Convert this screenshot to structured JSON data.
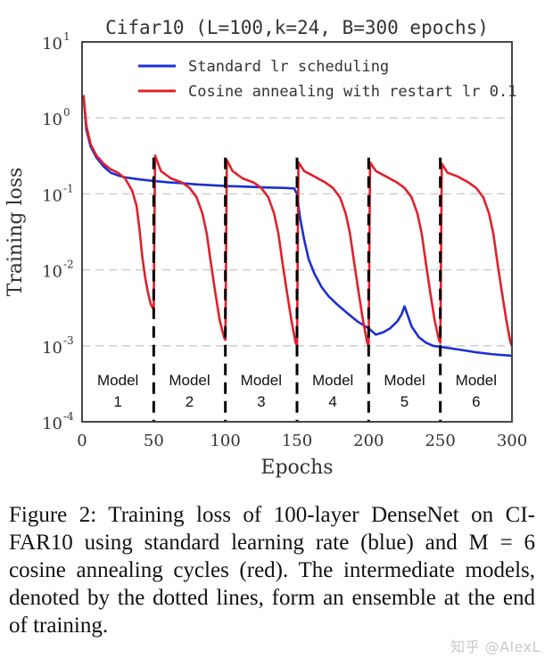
{
  "chart_data": {
    "type": "line",
    "title": "Cifar10 (L=100,k=24, B=300 epochs)",
    "xlabel": "Epochs",
    "ylabel": "Training loss",
    "xlim": [
      0,
      300
    ],
    "ylim": [
      0.0001,
      10
    ],
    "yscale": "log",
    "grid": true,
    "legend_position": "top",
    "x_ticks": [
      "0",
      "50",
      "100",
      "150",
      "200",
      "250",
      "300"
    ],
    "y_ticks": [
      {
        "base": "10",
        "exp": "1",
        "value": 10
      },
      {
        "base": "10",
        "exp": "0",
        "value": 1
      },
      {
        "base": "10",
        "exp": "-1",
        "value": 0.1
      },
      {
        "base": "10",
        "exp": "-2",
        "value": 0.01
      },
      {
        "base": "10",
        "exp": "-3",
        "value": 0.001
      },
      {
        "base": "10",
        "exp": "-4",
        "value": 0.0001
      }
    ],
    "series": [
      {
        "name": "Standard lr scheduling",
        "color": "#1a2fd4",
        "points": [
          [
            1,
            2.0
          ],
          [
            3,
            0.7
          ],
          [
            6,
            0.42
          ],
          [
            10,
            0.3
          ],
          [
            15,
            0.23
          ],
          [
            20,
            0.19
          ],
          [
            25,
            0.175
          ],
          [
            30,
            0.165
          ],
          [
            40,
            0.155
          ],
          [
            50,
            0.148
          ],
          [
            60,
            0.142
          ],
          [
            70,
            0.138
          ],
          [
            80,
            0.133
          ],
          [
            90,
            0.13
          ],
          [
            100,
            0.127
          ],
          [
            110,
            0.125
          ],
          [
            120,
            0.123
          ],
          [
            130,
            0.121
          ],
          [
            140,
            0.12
          ],
          [
            148,
            0.118
          ],
          [
            150,
            0.1
          ],
          [
            152,
            0.05
          ],
          [
            155,
            0.025
          ],
          [
            158,
            0.014
          ],
          [
            162,
            0.009
          ],
          [
            167,
            0.006
          ],
          [
            172,
            0.0045
          ],
          [
            178,
            0.0035
          ],
          [
            185,
            0.0027
          ],
          [
            192,
            0.0021
          ],
          [
            200,
            0.0017
          ],
          [
            205,
            0.0014
          ],
          [
            210,
            0.0015
          ],
          [
            215,
            0.0017
          ],
          [
            220,
            0.0021
          ],
          [
            223,
            0.0026
          ],
          [
            225,
            0.0033
          ],
          [
            227,
            0.0026
          ],
          [
            230,
            0.0018
          ],
          [
            235,
            0.0013
          ],
          [
            240,
            0.0011
          ],
          [
            245,
            0.001
          ],
          [
            255,
            0.00094
          ],
          [
            265,
            0.00088
          ],
          [
            275,
            0.00082
          ],
          [
            285,
            0.00078
          ],
          [
            292,
            0.00076
          ],
          [
            300,
            0.00074
          ]
        ]
      },
      {
        "name": "Cosine annealing with restart lr 0.1",
        "color": "#e0202a",
        "points": [
          [
            1,
            2.0
          ],
          [
            3,
            0.8
          ],
          [
            6,
            0.45
          ],
          [
            10,
            0.32
          ],
          [
            15,
            0.25
          ],
          [
            20,
            0.21
          ],
          [
            25,
            0.19
          ],
          [
            30,
            0.16
          ],
          [
            35,
            0.11
          ],
          [
            38,
            0.07
          ],
          [
            40,
            0.035
          ],
          [
            42,
            0.015
          ],
          [
            44,
            0.008
          ],
          [
            46,
            0.005
          ],
          [
            48,
            0.0035
          ],
          [
            50,
            0.003
          ],
          [
            51,
            0.32
          ],
          [
            55,
            0.2
          ],
          [
            62,
            0.16
          ],
          [
            70,
            0.14
          ],
          [
            75,
            0.12
          ],
          [
            80,
            0.09
          ],
          [
            84,
            0.055
          ],
          [
            87,
            0.03
          ],
          [
            90,
            0.012
          ],
          [
            93,
            0.005
          ],
          [
            96,
            0.0022
          ],
          [
            99,
            0.0013
          ],
          [
            100,
            0.0012
          ],
          [
            101,
            0.28
          ],
          [
            105,
            0.2
          ],
          [
            112,
            0.16
          ],
          [
            120,
            0.14
          ],
          [
            125,
            0.12
          ],
          [
            130,
            0.09
          ],
          [
            134,
            0.055
          ],
          [
            137,
            0.03
          ],
          [
            140,
            0.012
          ],
          [
            143,
            0.005
          ],
          [
            146,
            0.0022
          ],
          [
            149,
            0.0011
          ],
          [
            150,
            0.001
          ],
          [
            151,
            0.26
          ],
          [
            155,
            0.2
          ],
          [
            162,
            0.17
          ],
          [
            170,
            0.14
          ],
          [
            175,
            0.12
          ],
          [
            180,
            0.09
          ],
          [
            184,
            0.055
          ],
          [
            187,
            0.03
          ],
          [
            190,
            0.012
          ],
          [
            193,
            0.005
          ],
          [
            196,
            0.0022
          ],
          [
            199,
            0.0011
          ],
          [
            200,
            0.001
          ],
          [
            201,
            0.26
          ],
          [
            205,
            0.2
          ],
          [
            212,
            0.17
          ],
          [
            220,
            0.14
          ],
          [
            225,
            0.12
          ],
          [
            230,
            0.09
          ],
          [
            234,
            0.055
          ],
          [
            237,
            0.03
          ],
          [
            240,
            0.012
          ],
          [
            243,
            0.005
          ],
          [
            246,
            0.0022
          ],
          [
            249,
            0.0012
          ],
          [
            250,
            0.0011
          ],
          [
            251,
            0.25
          ],
          [
            255,
            0.19
          ],
          [
            262,
            0.17
          ],
          [
            270,
            0.14
          ],
          [
            275,
            0.12
          ],
          [
            280,
            0.09
          ],
          [
            284,
            0.055
          ],
          [
            287,
            0.03
          ],
          [
            290,
            0.012
          ],
          [
            293,
            0.005
          ],
          [
            296,
            0.0022
          ],
          [
            299,
            0.0011
          ],
          [
            300,
            0.001
          ]
        ]
      }
    ],
    "vlines": [
      50,
      100,
      150,
      200,
      250
    ],
    "annotations": [
      {
        "line1": "Model",
        "line2": "1",
        "x": 25
      },
      {
        "line1": "Model",
        "line2": "2",
        "x": 75
      },
      {
        "line1": "Model",
        "line2": "3",
        "x": 125
      },
      {
        "line1": "Model",
        "line2": "4",
        "x": 175
      },
      {
        "line1": "Model",
        "line2": "5",
        "x": 225
      },
      {
        "line1": "Model",
        "line2": "6",
        "x": 275
      }
    ]
  },
  "caption": {
    "lead": "Figure 2:",
    "text": "Training loss of 100-layer DenseNet on CI-FAR10 using standard learning rate (blue) and M = 6 cosine annealing cycles (red). The intermediate models, denoted by the dotted lines, form an ensemble at the end of training."
  },
  "watermark": "知乎 @AlexL"
}
